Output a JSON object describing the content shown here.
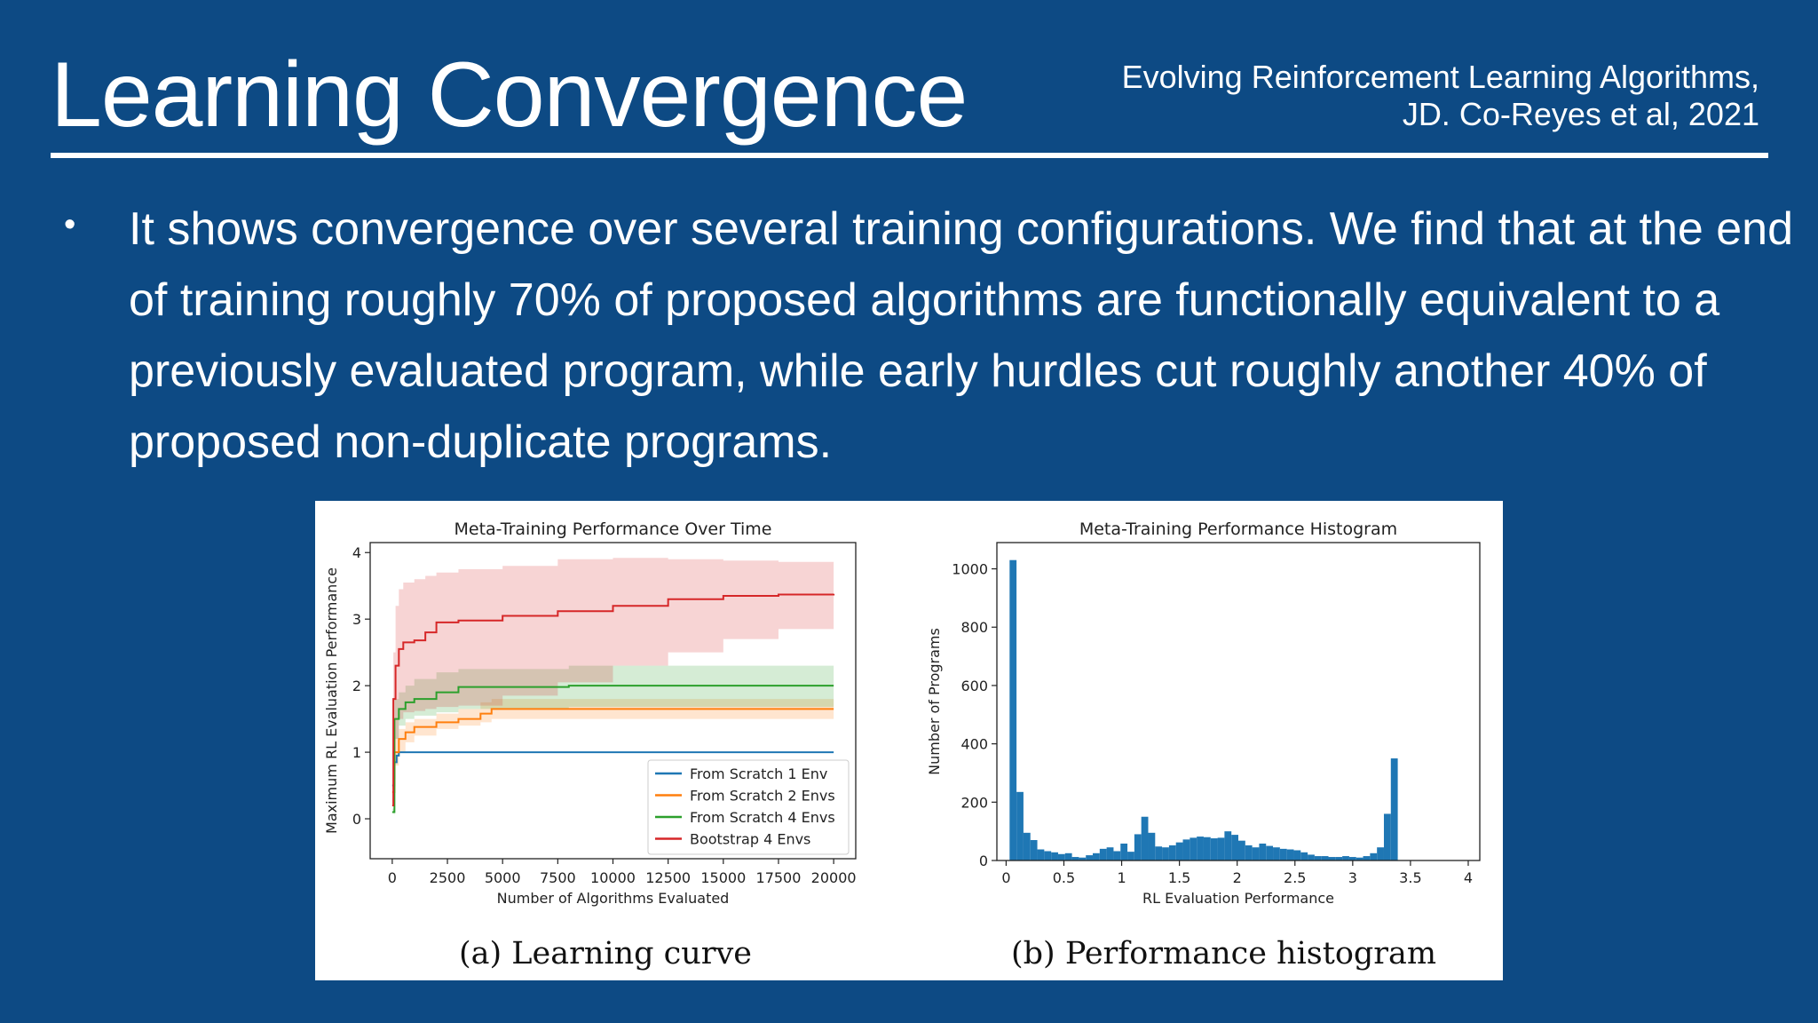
{
  "slide": {
    "title": "Learning Convergence",
    "citation_line1": "Evolving Reinforcement Learning Algorithms,",
    "citation_line2": "JD. Co-Reyes et al, 2021",
    "bullet": "It shows convergence over several training configurations. We find that at the end of training roughly 70% of proposed algorithms are functionally equivalent to a previously evaluated program, while early hurdles cut roughly another 40% of proposed non-duplicate programs.",
    "caption_a": "(a) Learning curve",
    "caption_b": "(b) Performance histogram"
  },
  "colors": {
    "background": "#0d4a84",
    "blue": "#1f77b4",
    "orange": "#ff7f0e",
    "green": "#2ca02c",
    "red": "#d62728"
  },
  "chart_data": [
    {
      "type": "line",
      "title": "Meta-Training Performance Over Time",
      "xlabel": "Number of Algorithms Evaluated",
      "ylabel": "Maximum RL Evaluation Performance",
      "xlim": [
        -1000,
        21000
      ],
      "ylim": [
        -0.6,
        4.15
      ],
      "xticks": [
        0,
        2500,
        5000,
        7500,
        10000,
        12500,
        15000,
        17500,
        20000
      ],
      "yticks": [
        0,
        1,
        2,
        3,
        4
      ],
      "legend": "lower-right",
      "series": [
        {
          "name": "From Scratch 1 Env",
          "color": "#1f77b4",
          "x": [
            0,
            100,
            200,
            300,
            20000
          ],
          "y": [
            0.5,
            0.85,
            0.95,
            1.0,
            1.0
          ]
        },
        {
          "name": "From Scratch 2 Envs",
          "color": "#ff7f0e",
          "x": [
            0,
            100,
            300,
            600,
            1000,
            2000,
            3000,
            4000,
            4500,
            20000
          ],
          "y": [
            0.4,
            1.0,
            1.2,
            1.3,
            1.38,
            1.45,
            1.5,
            1.58,
            1.65,
            1.65
          ],
          "band_lower": [
            0.3,
            0.8,
            1.0,
            1.15,
            1.25,
            1.35,
            1.4,
            1.45,
            1.5,
            1.5
          ],
          "band_upper": [
            0.5,
            1.2,
            1.35,
            1.45,
            1.5,
            1.58,
            1.65,
            1.75,
            1.8,
            1.8
          ]
        },
        {
          "name": "From Scratch 4 Envs",
          "color": "#2ca02c",
          "x": [
            0,
            100,
            300,
            600,
            1000,
            2000,
            3000,
            8000,
            20000
          ],
          "y": [
            0.1,
            1.5,
            1.65,
            1.75,
            1.8,
            1.9,
            1.98,
            2.0,
            2.0
          ],
          "band_lower": [
            0.05,
            1.2,
            1.4,
            1.5,
            1.55,
            1.6,
            1.65,
            1.68,
            1.68
          ],
          "band_upper": [
            0.15,
            1.8,
            1.9,
            2.0,
            2.1,
            2.2,
            2.25,
            2.3,
            2.3
          ]
        },
        {
          "name": "Bootstrap 4 Envs",
          "color": "#d62728",
          "x": [
            0,
            50,
            150,
            300,
            500,
            1000,
            1500,
            2000,
            3000,
            5000,
            7500,
            10000,
            12500,
            15000,
            17500,
            20000
          ],
          "y": [
            0.2,
            1.8,
            2.3,
            2.55,
            2.65,
            2.68,
            2.8,
            2.95,
            2.98,
            3.05,
            3.12,
            3.2,
            3.3,
            3.35,
            3.37,
            3.38
          ],
          "band_lower": [
            0.1,
            0.6,
            1.2,
            1.5,
            1.6,
            1.62,
            1.65,
            1.68,
            1.7,
            1.85,
            2.05,
            2.3,
            2.5,
            2.7,
            2.85,
            2.9
          ],
          "band_upper": [
            0.3,
            2.5,
            3.2,
            3.45,
            3.55,
            3.6,
            3.65,
            3.7,
            3.75,
            3.8,
            3.9,
            3.92,
            3.9,
            3.88,
            3.86,
            3.86
          ]
        }
      ]
    },
    {
      "type": "bar",
      "title": "Meta-Training Performance Histogram",
      "xlabel": "RL Evaluation Performance",
      "ylabel": "Number of Programs",
      "xlim": [
        -0.08,
        4.1
      ],
      "ylim": [
        0,
        1090
      ],
      "xticks": [
        0.0,
        0.5,
        1.0,
        1.5,
        2.0,
        2.5,
        3.0,
        3.5,
        4.0
      ],
      "yticks": [
        0,
        200,
        400,
        600,
        800,
        1000
      ],
      "bin_width": 0.06,
      "bin_start": 0.03,
      "values": [
        1030,
        235,
        95,
        70,
        38,
        32,
        28,
        22,
        25,
        12,
        10,
        18,
        25,
        40,
        45,
        32,
        58,
        30,
        90,
        150,
        95,
        48,
        45,
        52,
        62,
        72,
        78,
        82,
        80,
        76,
        78,
        100,
        88,
        68,
        52,
        45,
        58,
        50,
        45,
        40,
        38,
        35,
        28,
        20,
        15,
        15,
        12,
        12,
        15,
        12,
        10,
        15,
        25,
        45,
        160,
        350
      ]
    }
  ]
}
